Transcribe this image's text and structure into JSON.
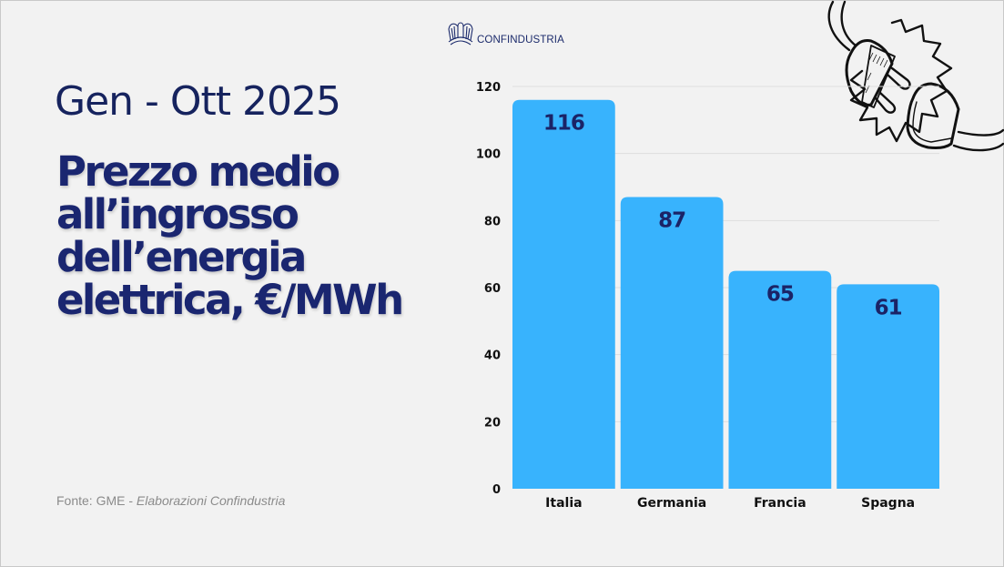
{
  "logo": {
    "name": "CONFINDUSTRIA",
    "icon": "confindustria-eagle-logo-icon"
  },
  "period": "Gen - Ott 2025",
  "title_lines": [
    "Prezzo medio",
    "all’ingrosso",
    "dell’energia",
    "elettrica, €/MWh"
  ],
  "source": {
    "prefix": "Fonte: GME - ",
    "italic": "Elaborazioni Confindustria"
  },
  "decoration": {
    "icon": "electric-plug-unplugged-icon"
  },
  "colors": {
    "bar": "#38b3fd",
    "value_label": "#1b2366",
    "title": "#1a2670",
    "axis_text": "#111111",
    "grid": "#dddddd"
  },
  "chart_data": {
    "type": "bar",
    "title": "Prezzo medio all’ingrosso dell’energia elettrica, €/MWh",
    "subtitle": "Gen - Ott 2025",
    "categories": [
      "Italia",
      "Germania",
      "Francia",
      "Spagna"
    ],
    "values": [
      116,
      87,
      65,
      61
    ],
    "data_labels": [
      "116",
      "87",
      "65",
      "61"
    ],
    "xlabel": "",
    "ylabel": "",
    "ylim": [
      0,
      120
    ],
    "yticks": [
      0,
      20,
      40,
      60,
      80,
      100,
      120
    ],
    "grid": true,
    "legend": "none"
  }
}
